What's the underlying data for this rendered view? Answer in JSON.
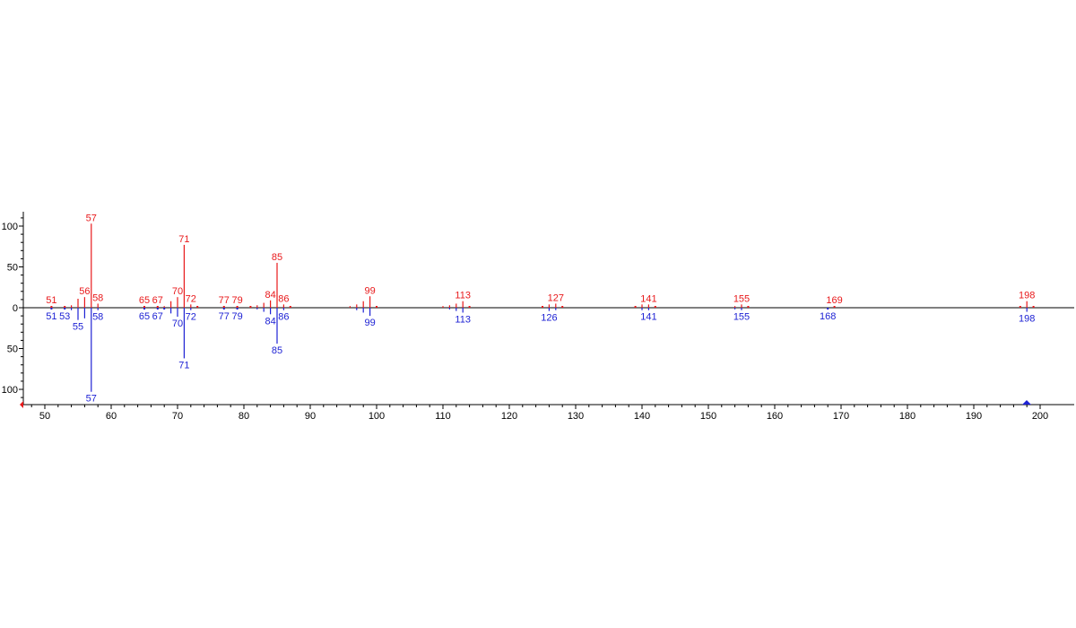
{
  "chart_data": {
    "type": "bar",
    "title": "",
    "xlabel": "",
    "ylabel": "",
    "xlim": [
      47,
      200
    ],
    "ylim": [
      -120,
      120
    ],
    "x_ticks": [
      50,
      60,
      70,
      80,
      90,
      100,
      110,
      120,
      130,
      140,
      150,
      160,
      170,
      180,
      190,
      200
    ],
    "y_ticks": [
      {
        "value": 100,
        "label": "100"
      },
      {
        "value": 50,
        "label": "50"
      },
      {
        "value": 0,
        "label": "0"
      },
      {
        "value": -50,
        "label": "50"
      },
      {
        "value": -100,
        "label": "100"
      }
    ],
    "grid": false,
    "legend": "none",
    "series": [
      {
        "direction": "up",
        "color": "#e8191b",
        "peaks": [
          {
            "mz": 51,
            "intensity": 1,
            "label": "51"
          },
          {
            "mz": 53,
            "intensity": 1,
            "label": ""
          },
          {
            "mz": 54,
            "intensity": 3,
            "label": ""
          },
          {
            "mz": 55,
            "intensity": 11,
            "label": ""
          },
          {
            "mz": 56,
            "intensity": 13,
            "label": "56"
          },
          {
            "mz": 57,
            "intensity": 103,
            "label": "57"
          },
          {
            "mz": 58,
            "intensity": 5,
            "label": "58"
          },
          {
            "mz": 65,
            "intensity": 1,
            "label": "65"
          },
          {
            "mz": 67,
            "intensity": 1,
            "label": "67"
          },
          {
            "mz": 68,
            "intensity": 2,
            "label": ""
          },
          {
            "mz": 69,
            "intensity": 8,
            "label": ""
          },
          {
            "mz": 70,
            "intensity": 13,
            "label": "70"
          },
          {
            "mz": 71,
            "intensity": 77,
            "label": "71"
          },
          {
            "mz": 72,
            "intensity": 4,
            "label": "72"
          },
          {
            "mz": 73,
            "intensity": 1,
            "label": ""
          },
          {
            "mz": 77,
            "intensity": 1,
            "label": "77"
          },
          {
            "mz": 79,
            "intensity": 1,
            "label": "79"
          },
          {
            "mz": 81,
            "intensity": 1,
            "label": ""
          },
          {
            "mz": 82,
            "intensity": 3,
            "label": ""
          },
          {
            "mz": 83,
            "intensity": 6,
            "label": ""
          },
          {
            "mz": 84,
            "intensity": 9,
            "label": "84"
          },
          {
            "mz": 85,
            "intensity": 55,
            "label": "85"
          },
          {
            "mz": 86,
            "intensity": 4,
            "label": "86"
          },
          {
            "mz": 87,
            "intensity": 1,
            "label": ""
          },
          {
            "mz": 96,
            "intensity": 2,
            "label": ""
          },
          {
            "mz": 97,
            "intensity": 4,
            "label": ""
          },
          {
            "mz": 98,
            "intensity": 8,
            "label": ""
          },
          {
            "mz": 99,
            "intensity": 14,
            "label": "99"
          },
          {
            "mz": 100,
            "intensity": 1,
            "label": ""
          },
          {
            "mz": 110,
            "intensity": 2,
            "label": ""
          },
          {
            "mz": 111,
            "intensity": 3,
            "label": ""
          },
          {
            "mz": 112,
            "intensity": 5,
            "label": ""
          },
          {
            "mz": 113,
            "intensity": 8,
            "label": "113"
          },
          {
            "mz": 114,
            "intensity": 1,
            "label": ""
          },
          {
            "mz": 125,
            "intensity": 1,
            "label": ""
          },
          {
            "mz": 126,
            "intensity": 4,
            "label": ""
          },
          {
            "mz": 127,
            "intensity": 5,
            "label": "127"
          },
          {
            "mz": 128,
            "intensity": 1,
            "label": ""
          },
          {
            "mz": 139,
            "intensity": 1,
            "label": ""
          },
          {
            "mz": 140,
            "intensity": 4,
            "label": ""
          },
          {
            "mz": 141,
            "intensity": 4,
            "label": "141"
          },
          {
            "mz": 142,
            "intensity": 1,
            "label": ""
          },
          {
            "mz": 154,
            "intensity": 2,
            "label": ""
          },
          {
            "mz": 155,
            "intensity": 4,
            "label": "155"
          },
          {
            "mz": 156,
            "intensity": 1,
            "label": ""
          },
          {
            "mz": 169,
            "intensity": 1,
            "label": "169"
          },
          {
            "mz": 197,
            "intensity": 1,
            "label": ""
          },
          {
            "mz": 198,
            "intensity": 8,
            "label": "198"
          },
          {
            "mz": 199,
            "intensity": 1,
            "label": ""
          }
        ]
      },
      {
        "direction": "down",
        "color": "#1e22d4",
        "peaks": [
          {
            "mz": 51,
            "intensity": 1,
            "label": "51"
          },
          {
            "mz": 53,
            "intensity": 1,
            "label": "53"
          },
          {
            "mz": 54,
            "intensity": 3,
            "label": ""
          },
          {
            "mz": 55,
            "intensity": 15,
            "label": "55"
          },
          {
            "mz": 56,
            "intensity": 13,
            "label": ""
          },
          {
            "mz": 57,
            "intensity": 103,
            "label": "57"
          },
          {
            "mz": 58,
            "intensity": 3,
            "label": "58"
          },
          {
            "mz": 65,
            "intensity": 1,
            "label": "65"
          },
          {
            "mz": 67,
            "intensity": 1,
            "label": "67"
          },
          {
            "mz": 68,
            "intensity": 1,
            "label": ""
          },
          {
            "mz": 69,
            "intensity": 7,
            "label": ""
          },
          {
            "mz": 70,
            "intensity": 11,
            "label": "70"
          },
          {
            "mz": 71,
            "intensity": 62,
            "label": "71"
          },
          {
            "mz": 72,
            "intensity": 3,
            "label": "72"
          },
          {
            "mz": 77,
            "intensity": 1,
            "label": "77"
          },
          {
            "mz": 79,
            "intensity": 1,
            "label": "79"
          },
          {
            "mz": 82,
            "intensity": 2,
            "label": ""
          },
          {
            "mz": 83,
            "intensity": 5,
            "label": ""
          },
          {
            "mz": 84,
            "intensity": 8,
            "label": "84"
          },
          {
            "mz": 85,
            "intensity": 44,
            "label": "85"
          },
          {
            "mz": 86,
            "intensity": 3,
            "label": "86"
          },
          {
            "mz": 97,
            "intensity": 3,
            "label": ""
          },
          {
            "mz": 98,
            "intensity": 6,
            "label": ""
          },
          {
            "mz": 99,
            "intensity": 10,
            "label": "99"
          },
          {
            "mz": 111,
            "intensity": 2,
            "label": ""
          },
          {
            "mz": 112,
            "intensity": 4,
            "label": ""
          },
          {
            "mz": 113,
            "intensity": 6,
            "label": "113"
          },
          {
            "mz": 126,
            "intensity": 4,
            "label": "126"
          },
          {
            "mz": 127,
            "intensity": 3,
            "label": ""
          },
          {
            "mz": 140,
            "intensity": 3,
            "label": ""
          },
          {
            "mz": 141,
            "intensity": 3,
            "label": "141"
          },
          {
            "mz": 154,
            "intensity": 2,
            "label": ""
          },
          {
            "mz": 155,
            "intensity": 3,
            "label": "155"
          },
          {
            "mz": 168,
            "intensity": 1,
            "label": "168"
          },
          {
            "mz": 198,
            "intensity": 5,
            "label": "198"
          }
        ]
      }
    ]
  }
}
